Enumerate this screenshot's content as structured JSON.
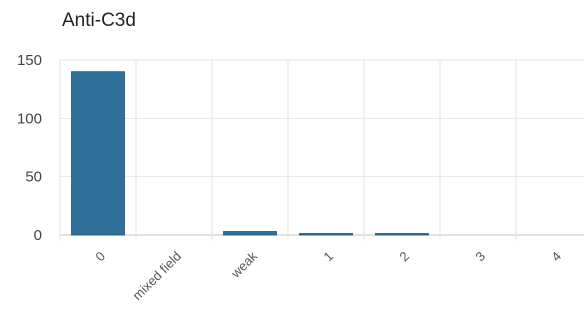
{
  "chart_data": {
    "type": "bar",
    "title": "Anti-C3d",
    "categories": [
      "0",
      "mixed field",
      "weak",
      "1",
      "2",
      "3",
      "4"
    ],
    "values": [
      140,
      0,
      3,
      1,
      1,
      0,
      0
    ],
    "xlabel": "",
    "ylabel": "",
    "ylim": [
      0,
      150
    ],
    "yticks": [
      0,
      50,
      100,
      150
    ],
    "grid": true,
    "legend": "none",
    "bar_color": "#2f6f97"
  }
}
